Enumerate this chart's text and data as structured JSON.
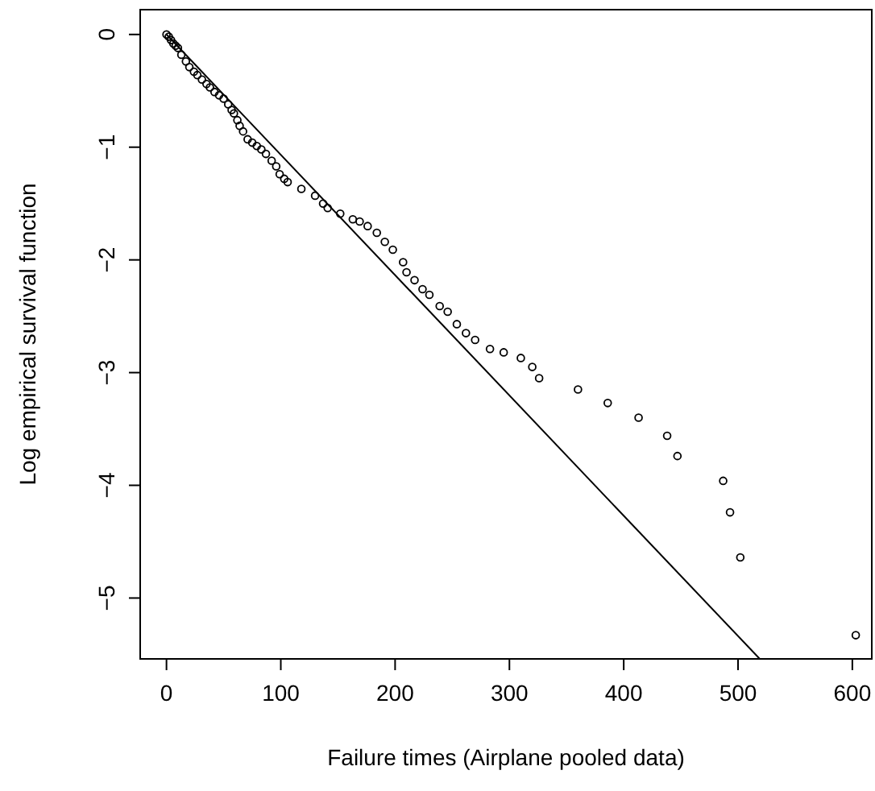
{
  "chart_data": {
    "type": "scatter",
    "xlabel": "Failure times (Airplane pooled data)",
    "ylabel": "Log empirical survival function",
    "xlim": [
      -23,
      617
    ],
    "ylim": [
      -5.54,
      0.22
    ],
    "xticks": [
      0,
      100,
      200,
      300,
      400,
      500,
      600
    ],
    "yticks": [
      {
        "value": 0,
        "label": "0"
      },
      {
        "value": -1,
        "label": "−1"
      },
      {
        "value": -2,
        "label": "−2"
      },
      {
        "value": -3,
        "label": "−3"
      },
      {
        "value": -4,
        "label": "−4"
      },
      {
        "value": -5,
        "label": "−5"
      }
    ],
    "grid": false,
    "series": [
      {
        "marker": "circle",
        "color": "#000000",
        "x": [
          0,
          2,
          4,
          6,
          8,
          10,
          13,
          17,
          20,
          24,
          27,
          31,
          35,
          38,
          42,
          46,
          50,
          54,
          57,
          59,
          62,
          64,
          67,
          71,
          75,
          79,
          83,
          87,
          92,
          96,
          99,
          103,
          106,
          118,
          130,
          137,
          141,
          152,
          163,
          169,
          176,
          184,
          191,
          198,
          207,
          210,
          217,
          224,
          230,
          239,
          246,
          254,
          262,
          270,
          283,
          295,
          310,
          320,
          326,
          360,
          386,
          413,
          438,
          447,
          487,
          493,
          502,
          603
        ],
        "values": [
          0,
          -0.02,
          -0.05,
          -0.08,
          -0.1,
          -0.12,
          -0.18,
          -0.24,
          -0.29,
          -0.33,
          -0.36,
          -0.4,
          -0.44,
          -0.47,
          -0.51,
          -0.54,
          -0.57,
          -0.62,
          -0.67,
          -0.7,
          -0.76,
          -0.81,
          -0.86,
          -0.93,
          -0.96,
          -0.99,
          -1.02,
          -1.06,
          -1.12,
          -1.17,
          -1.24,
          -1.28,
          -1.31,
          -1.37,
          -1.43,
          -1.5,
          -1.54,
          -1.59,
          -1.64,
          -1.66,
          -1.7,
          -1.76,
          -1.84,
          -1.91,
          -2.02,
          -2.11,
          -2.18,
          -2.26,
          -2.31,
          -2.41,
          -2.46,
          -2.57,
          -2.65,
          -2.71,
          -2.79,
          -2.82,
          -2.87,
          -2.95,
          -3.05,
          -3.15,
          -3.27,
          -3.4,
          -3.56,
          -3.74,
          -3.96,
          -4.24,
          -4.64,
          -5.33
        ]
      },
      {
        "type": "line",
        "marker": "none",
        "line_style": "solid",
        "color": "#000000",
        "x": [
          0,
          519
        ],
        "values": [
          0,
          -5.54
        ]
      }
    ]
  }
}
